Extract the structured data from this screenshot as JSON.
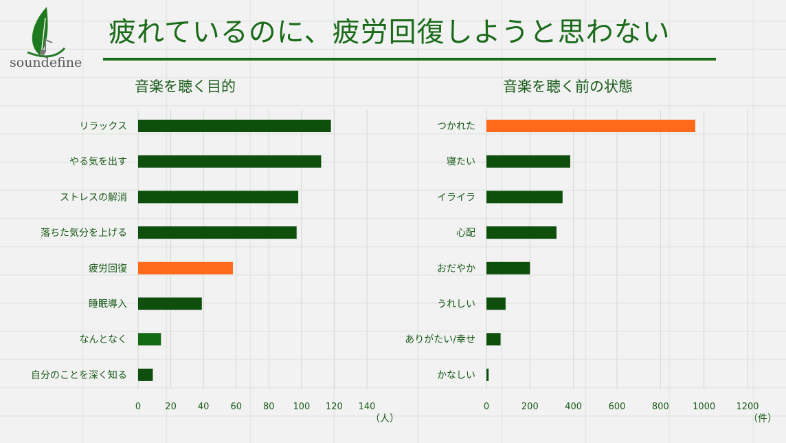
{
  "brand": {
    "name": "soundefine"
  },
  "header": {
    "title": "疲れているのに、疲労回復しようと思わない"
  },
  "chart_data": [
    {
      "type": "bar",
      "orientation": "horizontal",
      "title": "音楽を聴く目的",
      "categories": [
        "リラックス",
        "やる気を出す",
        "ストレスの解消",
        "落ちた気分を上げる",
        "疲労回復",
        "睡眠導入",
        "なんとなく",
        "自分のことを深く知る"
      ],
      "values": [
        118,
        112,
        98,
        97,
        58,
        39,
        14,
        9
      ],
      "highlight": [
        4
      ],
      "xlim": [
        0,
        140
      ],
      "xticks": [
        0,
        20,
        40,
        60,
        80,
        100,
        120,
        140
      ],
      "unit": "（人）",
      "grid": true,
      "colors": {
        "bar": "#0e4f0e",
        "highlight": "#ff6a1a",
        "bar_light": "#116a11"
      }
    },
    {
      "type": "bar",
      "orientation": "horizontal",
      "title": "音楽を聴く前の状態",
      "categories": [
        "つかれた",
        "寝たい",
        "イライラ",
        "心配",
        "おだやか",
        "うれしい",
        "ありがたい/幸せ",
        "かなしい"
      ],
      "values": [
        960,
        385,
        350,
        322,
        200,
        88,
        65,
        10
      ],
      "highlight": [
        0
      ],
      "xlim": [
        0,
        1200
      ],
      "xticks": [
        0,
        200,
        400,
        600,
        800,
        1000,
        1200
      ],
      "unit": "（件）",
      "grid": true,
      "colors": {
        "bar": "#0e4f0e",
        "highlight": "#ff6a1a"
      }
    }
  ]
}
